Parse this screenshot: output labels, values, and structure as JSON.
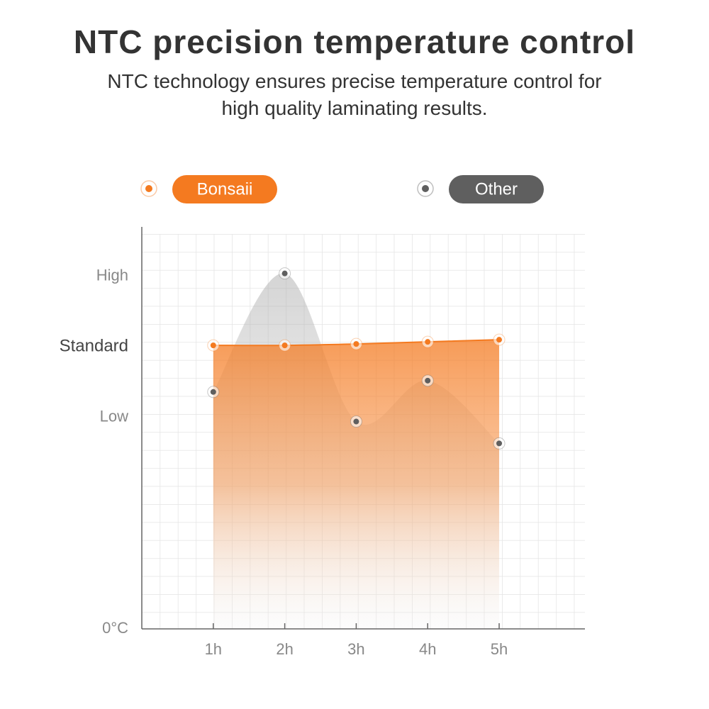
{
  "chart_data": {
    "type": "area",
    "title": "NTC precision temperature control",
    "subtitle": "NTC technology ensures precise temperature control for high quality laminating results.",
    "x": [
      1,
      2,
      3,
      4,
      5
    ],
    "xlim": [
      0,
      6.2
    ],
    "xticks": [
      {
        "value": 1,
        "label": "1h"
      },
      {
        "value": 2,
        "label": "2h"
      },
      {
        "value": 3,
        "label": "3h"
      },
      {
        "value": 4,
        "label": "4h"
      },
      {
        "value": 5,
        "label": "5h"
      }
    ],
    "ylim": [
      0,
      5.7
    ],
    "yticks": [
      {
        "value": 0,
        "label": "0°C"
      },
      {
        "value": 3,
        "label": "Low"
      },
      {
        "value": 4,
        "label": "Standard"
      },
      {
        "value": 5,
        "label": "High"
      }
    ],
    "grid": true,
    "series": [
      {
        "name": "Other",
        "color": "#5f5f5f",
        "values": [
          3.36,
          5.04,
          2.94,
          3.52,
          2.63
        ]
      },
      {
        "name": "Bonsaii",
        "color": "#f47a20",
        "values": [
          4.02,
          4.02,
          4.04,
          4.07,
          4.1
        ]
      }
    ]
  }
}
